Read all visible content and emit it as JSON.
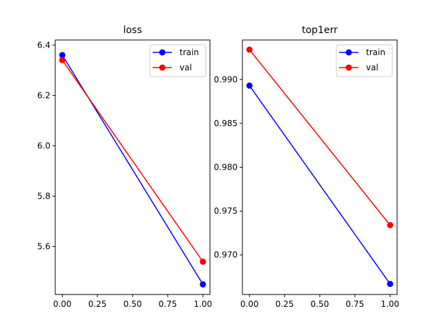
{
  "chart_data": [
    {
      "type": "line",
      "title": "loss",
      "xlabel": "",
      "ylabel": "",
      "xlim": [
        -0.05,
        1.05
      ],
      "ylim": [
        5.41,
        6.42
      ],
      "xticks": [
        0.0,
        0.25,
        0.5,
        0.75,
        1.0
      ],
      "xtick_labels": [
        "0.00",
        "0.25",
        "0.50",
        "0.75",
        "1.00"
      ],
      "yticks": [
        5.6,
        5.8,
        6.0,
        6.2,
        6.4
      ],
      "ytick_labels": [
        "5.6",
        "5.8",
        "6.0",
        "6.2",
        "6.4"
      ],
      "grid": false,
      "legend_position": "top-right",
      "series": [
        {
          "name": "train",
          "color": "#0000ff",
          "x": [
            0,
            1
          ],
          "y": [
            6.36,
            5.45
          ]
        },
        {
          "name": "val",
          "color": "#ff0000",
          "x": [
            0,
            1
          ],
          "y": [
            6.34,
            5.54
          ]
        }
      ]
    },
    {
      "type": "line",
      "title": "top1err",
      "xlabel": "",
      "ylabel": "",
      "xlim": [
        -0.05,
        1.05
      ],
      "ylim": [
        0.9655,
        0.9945
      ],
      "xticks": [
        0.0,
        0.25,
        0.5,
        0.75,
        1.0
      ],
      "xtick_labels": [
        "0.00",
        "0.25",
        "0.50",
        "0.75",
        "1.00"
      ],
      "yticks": [
        0.97,
        0.975,
        0.98,
        0.985,
        0.99
      ],
      "ytick_labels": [
        "0.970",
        "0.975",
        "0.980",
        "0.985",
        "0.990"
      ],
      "grid": false,
      "legend_position": "top-right",
      "series": [
        {
          "name": "train",
          "color": "#0000ff",
          "x": [
            0,
            1
          ],
          "y": [
            0.9893,
            0.9667
          ]
        },
        {
          "name": "val",
          "color": "#ff0000",
          "x": [
            0,
            1
          ],
          "y": [
            0.9934,
            0.9734
          ]
        }
      ]
    }
  ]
}
